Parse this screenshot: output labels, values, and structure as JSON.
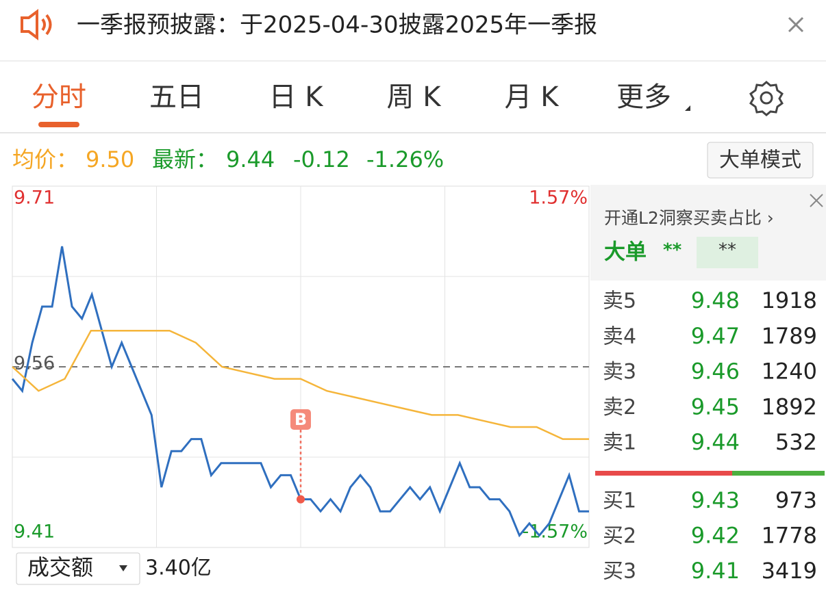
{
  "banner": {
    "text": "一季报预披露：于2025-04-30披露2025年一季报"
  },
  "tabs": [
    "分时",
    "五日",
    "日 K",
    "周 K",
    "月 K",
    "更多"
  ],
  "quote": {
    "avg_label": "均价：",
    "avg": "9.50",
    "latest_label": "最新：",
    "latest": "9.44",
    "change": "-0.12",
    "change_pct": "-1.26%"
  },
  "mode_button": "大单模式",
  "chart_data": {
    "type": "line",
    "series": [
      {
        "color": "#2f6fbf",
        "values": [
          9.55,
          9.54,
          9.58,
          9.61,
          9.61,
          9.66,
          9.61,
          9.6,
          9.62,
          9.59,
          9.56,
          9.58,
          9.56,
          9.54,
          9.52,
          9.46,
          9.49,
          9.49,
          9.5,
          9.5,
          9.47,
          9.48,
          9.48,
          9.48,
          9.48,
          9.48,
          9.46,
          9.47,
          9.47,
          9.45,
          9.45,
          9.44,
          9.45,
          9.44,
          9.46,
          9.47,
          9.46,
          9.44,
          9.44,
          9.45,
          9.46,
          9.45,
          9.46,
          9.44,
          9.46,
          9.48,
          9.46,
          9.46,
          9.45,
          9.45,
          9.44,
          9.42,
          9.43,
          9.42,
          9.43,
          9.45,
          9.47,
          9.44,
          9.44
        ]
      },
      {
        "color": "#f5b53a",
        "values": [
          9.56,
          9.54,
          9.55,
          9.59,
          9.59,
          9.59,
          9.59,
          9.58,
          9.56,
          9.555,
          9.55,
          9.55,
          9.54,
          9.535,
          9.53,
          9.525,
          9.52,
          9.52,
          9.515,
          9.51,
          9.51,
          9.5,
          9.5
        ]
      }
    ],
    "ylim": [
      9.41,
      9.71
    ],
    "yticks": [
      9.71,
      9.56,
      9.41
    ],
    "y2lim": [
      -1.57,
      1.57
    ],
    "y2ticks": [
      {
        "value": 1.57,
        "label": "1.57%"
      },
      {
        "value": -1.57,
        "label": "-1.57%"
      }
    ],
    "buy_marker": "B"
  },
  "order_book": {
    "promo": "开通L2洞察买卖占比 ›",
    "big_label": "大单",
    "big_value": "**",
    "big_box": "**",
    "asks": [
      {
        "label": "卖5",
        "price": "9.48",
        "volume": "1918"
      },
      {
        "label": "卖4",
        "price": "9.47",
        "volume": "1789"
      },
      {
        "label": "卖3",
        "price": "9.46",
        "volume": "1240"
      },
      {
        "label": "卖2",
        "price": "9.45",
        "volume": "1892"
      },
      {
        "label": "卖1",
        "price": "9.44",
        "volume": "532"
      }
    ],
    "bids": [
      {
        "label": "买1",
        "price": "9.43",
        "volume": "973"
      },
      {
        "label": "买2",
        "price": "9.42",
        "volume": "1778"
      },
      {
        "label": "买3",
        "price": "9.41",
        "volume": "3419"
      }
    ]
  },
  "bottom": {
    "selector": "成交额",
    "amount": "3.40亿"
  }
}
